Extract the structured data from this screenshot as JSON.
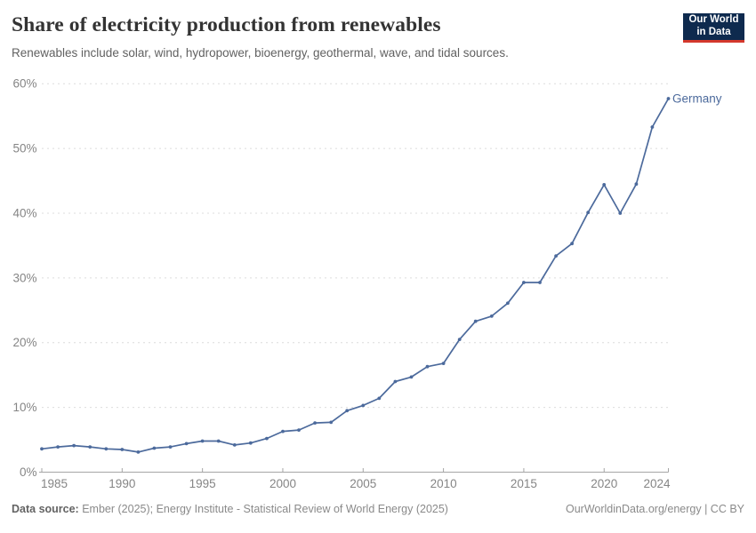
{
  "header": {
    "title": "Share of electricity production from renewables",
    "subtitle": "Renewables include solar, wind, hydropower, bioenergy, geothermal, wave, and tidal sources."
  },
  "logo": {
    "line1": "Our World",
    "line2": "in Data"
  },
  "footer": {
    "source_label": "Data source:",
    "source_text": " Ember (2025); Energy Institute - Statistical Review of World Energy (2025)",
    "attribution": "OurWorldinData.org/energy | CC BY"
  },
  "colors": {
    "series": "#4c6a9c",
    "grid": "#dcdcdc",
    "axis": "#a5a5a5",
    "tick_label": "#858585",
    "logo_bg": "#0e2a4e",
    "logo_red": "#d4382c"
  },
  "chart_data": {
    "type": "line",
    "title": "Share of electricity production from renewables",
    "subtitle": "Renewables include solar, wind, hydropower, bioenergy, geothermal, wave, and tidal sources.",
    "x": [
      1985,
      1986,
      1987,
      1988,
      1989,
      1990,
      1991,
      1992,
      1993,
      1994,
      1995,
      1996,
      1997,
      1998,
      1999,
      2000,
      2001,
      2002,
      2003,
      2004,
      2005,
      2006,
      2007,
      2008,
      2009,
      2010,
      2011,
      2012,
      2013,
      2014,
      2015,
      2016,
      2017,
      2018,
      2019,
      2020,
      2021,
      2022,
      2023,
      2024
    ],
    "series": [
      {
        "name": "Germany",
        "values": [
          3.6,
          3.9,
          4.1,
          3.9,
          3.6,
          3.5,
          3.1,
          3.7,
          3.9,
          4.4,
          4.8,
          4.8,
          4.2,
          4.5,
          5.2,
          6.3,
          6.5,
          7.6,
          7.7,
          9.5,
          10.3,
          11.4,
          14.0,
          14.7,
          16.3,
          16.8,
          20.5,
          23.3,
          24.1,
          26.1,
          29.3,
          29.3,
          33.4,
          35.3,
          40.1,
          44.4,
          40.0,
          44.5,
          53.3,
          57.7
        ]
      }
    ],
    "x_ticks": [
      1985,
      1990,
      1995,
      2000,
      2005,
      2010,
      2015,
      2020,
      2024
    ],
    "y_ticks": [
      0,
      10,
      20,
      30,
      40,
      50,
      60
    ],
    "y_unit": "%",
    "xlim": [
      1985,
      2024
    ],
    "ylim": [
      0,
      60
    ],
    "grid": "horizontal-dashed",
    "legend": "line-end-label"
  }
}
